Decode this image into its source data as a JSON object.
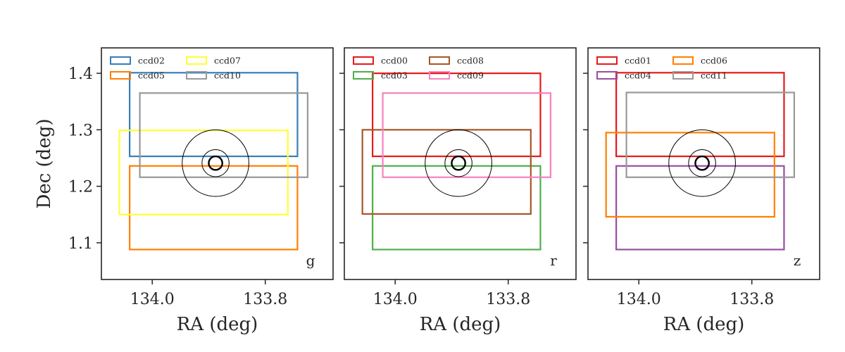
{
  "chart_data": {
    "type": "rectangle-footprint",
    "shared_y": true,
    "ylabel": "Dec (deg)",
    "ylim": [
      1.035,
      1.445
    ],
    "yticks": [
      1.1,
      1.2,
      1.3,
      1.4
    ],
    "ytick_labels": [
      "1.1",
      "1.2",
      "1.3",
      "1.4"
    ],
    "xlim": [
      134.09,
      133.68
    ],
    "xticks": [
      134.0,
      133.8
    ],
    "xtick_labels": [
      "134.0",
      "133.8"
    ],
    "target": {
      "ra": 133.888,
      "dec": 1.241,
      "circle_radii_deg": [
        0.012,
        0.024,
        0.059
      ],
      "thick_radius_index": 0
    },
    "panels": [
      {
        "band": "g",
        "xlabel": "RA (deg)",
        "ccds": [
          {
            "name": "ccd02",
            "color": "#377eb8",
            "ra": [
              134.04,
              133.743
            ],
            "dec": [
              1.253,
              1.401
            ]
          },
          {
            "name": "ccd05",
            "color": "#ff7f00",
            "ra": [
              134.04,
              133.743
            ],
            "dec": [
              1.088,
              1.236
            ]
          },
          {
            "name": "ccd07",
            "color": "#ffff33",
            "ra": [
              134.058,
              133.76
            ],
            "dec": [
              1.15,
              1.299
            ]
          },
          {
            "name": "ccd10",
            "color": "#999999",
            "ra": [
              134.022,
              133.725
            ],
            "dec": [
              1.216,
              1.365
            ]
          }
        ]
      },
      {
        "band": "r",
        "xlabel": "RA (deg)",
        "ccds": [
          {
            "name": "ccd00",
            "color": "#e41a1c",
            "ra": [
              134.04,
              133.743
            ],
            "dec": [
              1.253,
              1.4
            ]
          },
          {
            "name": "ccd03",
            "color": "#4daf4a",
            "ra": [
              134.04,
              133.743
            ],
            "dec": [
              1.088,
              1.236
            ]
          },
          {
            "name": "ccd08",
            "color": "#a65628",
            "ra": [
              134.058,
              133.76
            ],
            "dec": [
              1.151,
              1.3
            ]
          },
          {
            "name": "ccd09",
            "color": "#f781bf",
            "ra": [
              134.022,
              133.725
            ],
            "dec": [
              1.216,
              1.365
            ]
          }
        ]
      },
      {
        "band": "z",
        "xlabel": "RA (deg)",
        "ccds": [
          {
            "name": "ccd01",
            "color": "#e41a1c",
            "ra": [
              134.04,
              133.743
            ],
            "dec": [
              1.253,
              1.401
            ]
          },
          {
            "name": "ccd04",
            "color": "#984ea3",
            "ra": [
              134.04,
              133.743
            ],
            "dec": [
              1.088,
              1.236
            ]
          },
          {
            "name": "ccd06",
            "color": "#ff7f00",
            "ra": [
              134.058,
              133.76
            ],
            "dec": [
              1.146,
              1.295
            ]
          },
          {
            "name": "ccd11",
            "color": "#999999",
            "ra": [
              134.022,
              133.725
            ],
            "dec": [
              1.216,
              1.366
            ]
          }
        ]
      }
    ]
  }
}
